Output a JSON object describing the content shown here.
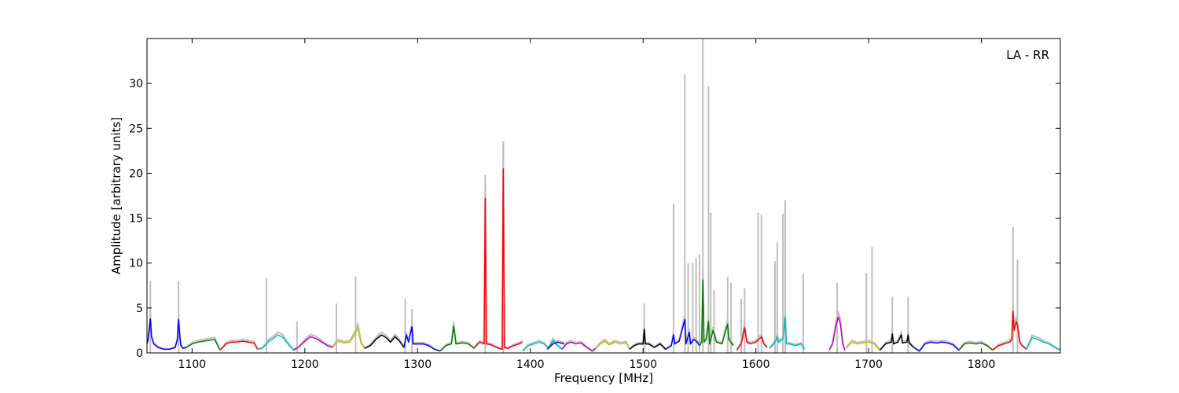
{
  "chart_data": {
    "type": "line",
    "title": "",
    "xlabel": "Frequency [MHz]",
    "ylabel": "Amplitude [arbitrary units]",
    "annotation": "LA - RR",
    "xlim": [
      1060,
      1870
    ],
    "ylim": [
      0,
      35
    ],
    "x_ticks": [
      1100,
      1200,
      1300,
      1400,
      1500,
      1600,
      1700,
      1800
    ],
    "y_ticks": [
      0,
      5,
      10,
      15,
      20,
      25,
      30
    ],
    "grid": false,
    "legend": "none",
    "raw_color": "#bfbfbf",
    "raw_spikes": [
      {
        "x": 1063,
        "y": 8.0
      },
      {
        "x": 1088,
        "y": 8.0
      },
      {
        "x": 1166,
        "y": 8.3
      },
      {
        "x": 1193,
        "y": 3.5
      },
      {
        "x": 1228,
        "y": 5.5
      },
      {
        "x": 1245,
        "y": 8.5
      },
      {
        "x": 1289,
        "y": 6.0
      },
      {
        "x": 1295,
        "y": 4.9
      },
      {
        "x": 1360,
        "y": 18.0
      },
      {
        "x": 1376,
        "y": 23.5
      },
      {
        "x": 1501,
        "y": 5.5
      },
      {
        "x": 1527,
        "y": 16.6
      },
      {
        "x": 1537,
        "y": 31.0
      },
      {
        "x": 1540,
        "y": 10.0
      },
      {
        "x": 1544,
        "y": 10.0
      },
      {
        "x": 1547,
        "y": 10.6
      },
      {
        "x": 1550,
        "y": 11.0
      },
      {
        "x": 1553,
        "y": 35.0
      },
      {
        "x": 1558,
        "y": 29.7
      },
      {
        "x": 1560,
        "y": 15.6
      },
      {
        "x": 1563,
        "y": 7.0
      },
      {
        "x": 1575,
        "y": 8.5
      },
      {
        "x": 1578,
        "y": 7.8
      },
      {
        "x": 1587,
        "y": 6.0
      },
      {
        "x": 1590,
        "y": 7.2
      },
      {
        "x": 1602,
        "y": 15.6
      },
      {
        "x": 1605,
        "y": 15.4
      },
      {
        "x": 1617,
        "y": 10.2
      },
      {
        "x": 1619,
        "y": 12.3
      },
      {
        "x": 1624,
        "y": 15.5
      },
      {
        "x": 1626,
        "y": 17.0
      },
      {
        "x": 1642,
        "y": 8.8
      },
      {
        "x": 1672,
        "y": 7.8
      },
      {
        "x": 1698,
        "y": 8.9
      },
      {
        "x": 1703,
        "y": 11.8
      },
      {
        "x": 1721,
        "y": 6.2
      },
      {
        "x": 1735,
        "y": 6.2
      },
      {
        "x": 1828,
        "y": 14.0
      },
      {
        "x": 1832,
        "y": 10.4
      }
    ],
    "series": [
      {
        "color": "#0000ff",
        "x": [
          1060,
          1061,
          1062,
          1063,
          1064,
          1066,
          1070,
          1075,
          1080,
          1085,
          1087,
          1088,
          1089,
          1090,
          1092,
          1095
        ],
        "y": [
          1.0,
          1.5,
          2.5,
          3.8,
          1.8,
          1.0,
          0.6,
          0.4,
          0.4,
          0.6,
          1.5,
          3.7,
          2.0,
          0.8,
          0.5,
          0.6
        ]
      },
      {
        "color": "#008000",
        "x": [
          1095,
          1100,
          1105,
          1110,
          1115,
          1120,
          1122,
          1125
        ],
        "y": [
          0.6,
          1.0,
          1.2,
          1.3,
          1.4,
          1.5,
          1.0,
          0.3
        ]
      },
      {
        "color": "#ff0000",
        "x": [
          1125,
          1130,
          1135,
          1140,
          1145,
          1150,
          1155,
          1158
        ],
        "y": [
          0.3,
          1.0,
          1.2,
          1.2,
          1.3,
          1.2,
          1.1,
          0.4
        ]
      },
      {
        "color": "#00bfbf",
        "x": [
          1158,
          1162,
          1166,
          1168,
          1172,
          1176,
          1180,
          1185,
          1190
        ],
        "y": [
          0.4,
          0.5,
          1.0,
          1.3,
          1.6,
          2.0,
          1.8,
          1.0,
          0.3
        ]
      },
      {
        "color": "#bf00bf",
        "x": [
          1190,
          1195,
          1200,
          1205,
          1210,
          1215,
          1220,
          1225
        ],
        "y": [
          0.3,
          0.7,
          1.3,
          1.8,
          1.6,
          1.2,
          0.8,
          0.6
        ]
      },
      {
        "color": "#bfbf00",
        "x": [
          1225,
          1228,
          1230,
          1235,
          1240,
          1245,
          1247,
          1250,
          1253
        ],
        "y": [
          0.6,
          1.2,
          1.3,
          1.1,
          1.2,
          2.2,
          2.8,
          1.0,
          0.5
        ]
      },
      {
        "color": "#000000",
        "x": [
          1253,
          1258,
          1263,
          1268,
          1272,
          1276,
          1280,
          1284,
          1288
        ],
        "y": [
          0.5,
          0.8,
          1.5,
          2.0,
          1.7,
          1.2,
          1.8,
          1.3,
          0.6
        ]
      },
      {
        "color": "#0000ff",
        "x": [
          1288,
          1290,
          1292,
          1295,
          1296,
          1300,
          1305,
          1310,
          1315,
          1320
        ],
        "y": [
          0.6,
          2.0,
          1.2,
          2.9,
          1.0,
          1.0,
          1.0,
          0.8,
          0.4,
          0.2
        ]
      },
      {
        "color": "#008000",
        "x": [
          1320,
          1325,
          1330,
          1332,
          1334,
          1340,
          1345,
          1350
        ],
        "y": [
          0.2,
          0.8,
          1.0,
          3.0,
          1.0,
          1.1,
          1.0,
          0.5
        ]
      },
      {
        "color": "#ff0000",
        "x": [
          1350,
          1355,
          1359,
          1360,
          1361,
          1365,
          1370,
          1375,
          1376,
          1377,
          1380,
          1385,
          1390,
          1393
        ],
        "y": [
          0.5,
          1.2,
          1.0,
          17.2,
          1.0,
          0.9,
          0.6,
          0.4,
          20.5,
          0.6,
          0.5,
          0.8,
          1.0,
          1.2
        ]
      },
      {
        "color": "#00bfbf",
        "x": [
          1393,
          1398,
          1403,
          1408,
          1412,
          1416,
          1420,
          1424,
          1428
        ],
        "y": [
          0.2,
          0.8,
          1.0,
          1.2,
          1.0,
          0.5,
          1.4,
          0.8,
          0.4
        ]
      },
      {
        "color": "#0000ff",
        "x": [
          1415,
          1420,
          1424,
          1427,
          1430
        ],
        "y": [
          0.4,
          1.0,
          1.2,
          1.1,
          1.0
        ]
      },
      {
        "color": "#bf00bf",
        "x": [
          1428,
          1432,
          1436,
          1440,
          1445,
          1450,
          1455,
          1458
        ],
        "y": [
          0.4,
          1.0,
          1.2,
          1.0,
          1.1,
          0.6,
          0.2,
          0.5
        ]
      },
      {
        "color": "#bfbf00",
        "x": [
          1458,
          1462,
          1466,
          1470,
          1475,
          1480,
          1485,
          1488
        ],
        "y": [
          0.5,
          1.0,
          1.3,
          0.9,
          1.2,
          1.0,
          1.1,
          0.4
        ]
      },
      {
        "color": "#000000",
        "x": [
          1488,
          1492,
          1496,
          1500,
          1501,
          1502,
          1505,
          1510,
          1515,
          1520
        ],
        "y": [
          0.4,
          0.8,
          1.0,
          1.0,
          2.6,
          1.0,
          1.0,
          0.6,
          1.0,
          0.4
        ]
      },
      {
        "color": "#0000ff",
        "x": [
          1520,
          1525,
          1527,
          1528,
          1532,
          1537,
          1538,
          1541,
          1542,
          1545,
          1548,
          1550
        ],
        "y": [
          0.4,
          0.8,
          2.0,
          1.0,
          1.3,
          3.7,
          1.0,
          2.3,
          1.0,
          1.5,
          1.2,
          0.8
        ]
      },
      {
        "color": "#008000",
        "x": [
          1550,
          1552,
          1553,
          1554,
          1556,
          1558,
          1559,
          1562,
          1565,
          1570,
          1574,
          1575,
          1576,
          1580
        ],
        "y": [
          0.8,
          1.2,
          8.1,
          1.2,
          1.5,
          3.5,
          1.0,
          2.5,
          1.2,
          1.0,
          2.8,
          3.2,
          1.5,
          0.8
        ]
      },
      {
        "color": "#ff0000",
        "x": [
          1583,
          1587,
          1590,
          1592,
          1595,
          1600,
          1605,
          1607,
          1610
        ],
        "y": [
          0.3,
          1.0,
          2.8,
          1.2,
          1.0,
          1.2,
          1.8,
          1.0,
          0.6
        ]
      },
      {
        "color": "#00bfbf",
        "x": [
          1612,
          1616,
          1619,
          1620,
          1624,
          1626,
          1627,
          1630,
          1635,
          1640,
          1643
        ],
        "y": [
          0.5,
          1.0,
          1.8,
          1.2,
          1.5,
          4.0,
          1.0,
          1.0,
          0.8,
          1.0,
          0.4
        ]
      },
      {
        "color": "#bf00bf",
        "x": [
          1665,
          1668,
          1671,
          1673,
          1675,
          1677,
          1679
        ],
        "y": [
          0.3,
          1.0,
          3.0,
          4.0,
          3.2,
          1.0,
          0.3
        ]
      },
      {
        "color": "#bfbf00",
        "x": [
          1680,
          1685,
          1690,
          1695,
          1700,
          1705,
          1710
        ],
        "y": [
          0.5,
          1.2,
          1.0,
          1.1,
          1.2,
          1.0,
          0.3
        ]
      },
      {
        "color": "#000000",
        "x": [
          1710,
          1715,
          1720,
          1721,
          1722,
          1726,
          1729,
          1730,
          1734,
          1735,
          1736,
          1740
        ],
        "y": [
          0.3,
          1.0,
          1.2,
          2.1,
          1.0,
          1.2,
          2.0,
          1.1,
          1.2,
          2.0,
          1.1,
          0.6
        ]
      },
      {
        "color": "#0000ff",
        "x": [
          1740,
          1745,
          1750,
          1755,
          1760,
          1765,
          1770,
          1775,
          1780
        ],
        "y": [
          0.6,
          0.2,
          1.0,
          1.2,
          1.1,
          1.2,
          1.1,
          0.9,
          0.3
        ]
      },
      {
        "color": "#008000",
        "x": [
          1780,
          1785,
          1790,
          1795,
          1800,
          1805,
          1810
        ],
        "y": [
          0.3,
          1.0,
          1.1,
          1.0,
          1.1,
          0.8,
          0.3
        ]
      },
      {
        "color": "#ff0000",
        "x": [
          1810,
          1815,
          1820,
          1825,
          1827,
          1828,
          1829,
          1831,
          1832,
          1834,
          1836,
          1840
        ],
        "y": [
          0.3,
          0.8,
          1.0,
          1.2,
          1.5,
          4.6,
          2.5,
          3.5,
          3.0,
          1.2,
          0.8,
          0.4
        ]
      },
      {
        "color": "#00bfbf",
        "x": [
          1840,
          1845,
          1850,
          1855,
          1860,
          1865,
          1870
        ],
        "y": [
          0.4,
          1.7,
          1.5,
          1.2,
          1.0,
          0.6,
          0.3
        ]
      }
    ]
  }
}
